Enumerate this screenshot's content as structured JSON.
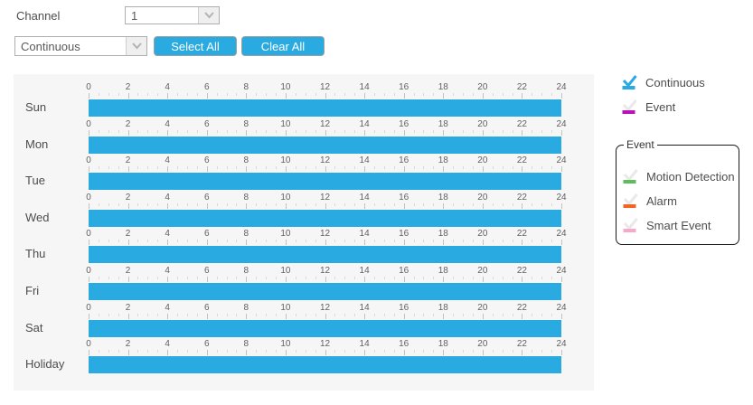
{
  "header": {
    "channel_label": "Channel",
    "channel_value": "1",
    "record_type_value": "Continuous",
    "select_all_label": "Select All",
    "clear_all_label": "Clear All"
  },
  "colors": {
    "continuous": "#29abe2",
    "event": "#b812b8",
    "motion": "#5bbd5b",
    "alarm": "#f26522",
    "smart": "#f8a8c8",
    "inactive_check": "#e9e9e9",
    "panel_bg": "#f6f6f6"
  },
  "chart_data": {
    "type": "bar",
    "title": "Weekly record schedule timelines",
    "x_axis": {
      "min": 0,
      "max": 24,
      "tick_step": 2,
      "minor_tick_hours": 0.5,
      "tick_labels": [
        "0",
        "2",
        "4",
        "6",
        "8",
        "10",
        "12",
        "14",
        "16",
        "18",
        "20",
        "22",
        "24"
      ]
    },
    "rows": [
      {
        "day": "Sun",
        "segments": [
          {
            "start": 0,
            "end": 24,
            "type": "continuous"
          }
        ]
      },
      {
        "day": "Mon",
        "segments": [
          {
            "start": 0,
            "end": 24,
            "type": "continuous"
          }
        ]
      },
      {
        "day": "Tue",
        "segments": [
          {
            "start": 0,
            "end": 24,
            "type": "continuous"
          }
        ]
      },
      {
        "day": "Wed",
        "segments": [
          {
            "start": 0,
            "end": 24,
            "type": "continuous"
          }
        ]
      },
      {
        "day": "Thu",
        "segments": [
          {
            "start": 0,
            "end": 24,
            "type": "continuous"
          }
        ]
      },
      {
        "day": "Fri",
        "segments": [
          {
            "start": 0,
            "end": 24,
            "type": "continuous"
          }
        ]
      },
      {
        "day": "Sat",
        "segments": [
          {
            "start": 0,
            "end": 24,
            "type": "continuous"
          }
        ]
      },
      {
        "day": "Holiday",
        "segments": [
          {
            "start": 0,
            "end": 24,
            "type": "continuous"
          }
        ]
      }
    ]
  },
  "legend": {
    "items": [
      {
        "id": "continuous",
        "label": "Continuous",
        "bar_color": "#29abe2",
        "check_color": "#29abe2"
      },
      {
        "id": "event",
        "label": "Event",
        "bar_color": "#b812b8",
        "check_color": "#e9e9e9"
      }
    ],
    "event_group": {
      "title": "Event",
      "items": [
        {
          "id": "motion",
          "label": "Motion Detection",
          "bar_color": "#5bbd5b",
          "check_color": "#e9e9e9"
        },
        {
          "id": "alarm",
          "label": "Alarm",
          "bar_color": "#f26522",
          "check_color": "#e9e9e9"
        },
        {
          "id": "smart",
          "label": "Smart Event",
          "bar_color": "#f8a8c8",
          "check_color": "#e9e9e9"
        }
      ]
    }
  }
}
